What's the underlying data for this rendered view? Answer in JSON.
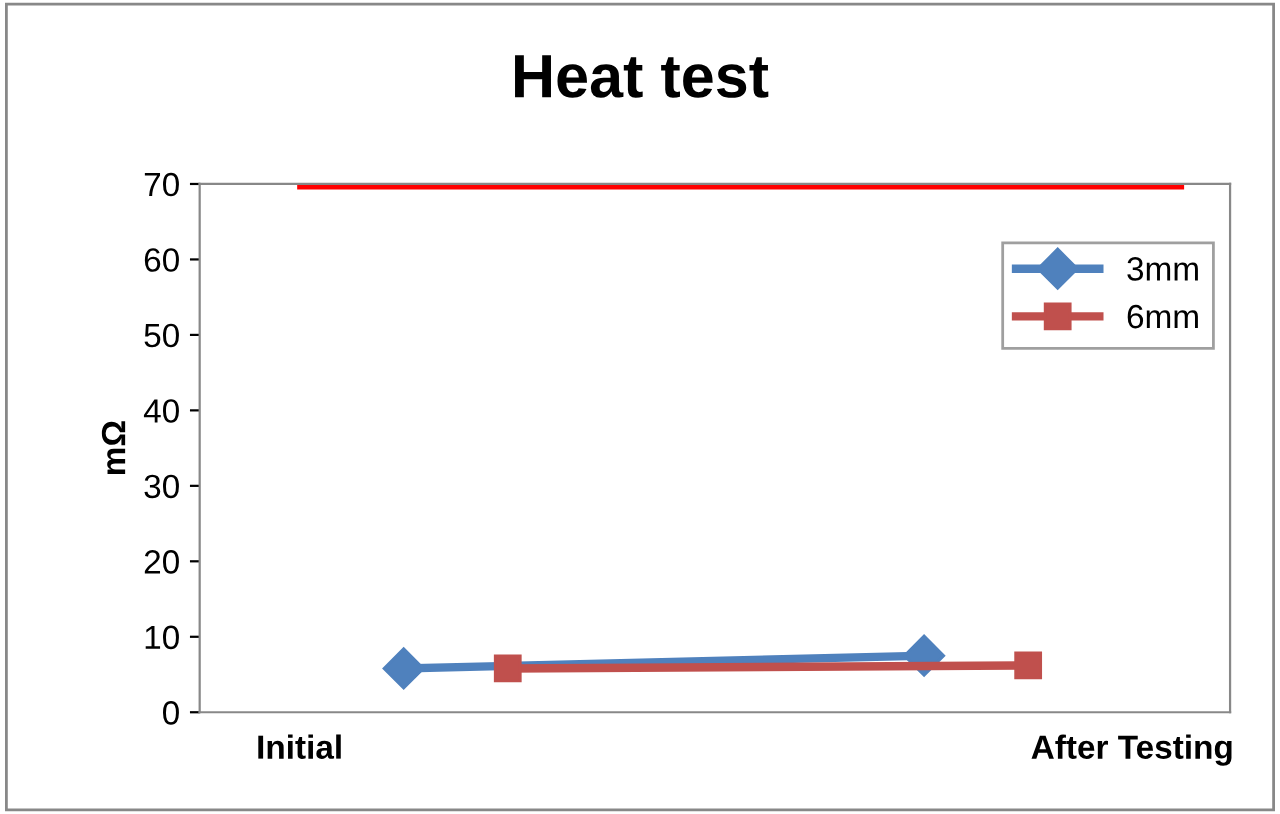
{
  "chart_data": {
    "type": "line",
    "title": "Heat test",
    "ylabel": "mΩ",
    "categories": [
      "Initial",
      null,
      null,
      null,
      null,
      null,
      null,
      null,
      "After Testing"
    ],
    "series": [
      {
        "name": "3mm",
        "color": "#4f81bd",
        "marker": "diamond",
        "values": [
          null,
          5.8,
          null,
          null,
          null,
          null,
          7.5,
          null,
          null
        ]
      },
      {
        "name": "6mm",
        "color": "#c0504d",
        "marker": "square",
        "values": [
          null,
          null,
          5.8,
          null,
          null,
          null,
          null,
          6.2,
          null
        ]
      }
    ],
    "ylim": [
      0,
      70
    ],
    "yticks": [
      0,
      10,
      20,
      30,
      40,
      50,
      60,
      70
    ],
    "grid": false,
    "legend": "top right",
    "ref_lines": [
      {
        "axis": "y",
        "value": 70,
        "color": "#ff0000"
      }
    ]
  }
}
